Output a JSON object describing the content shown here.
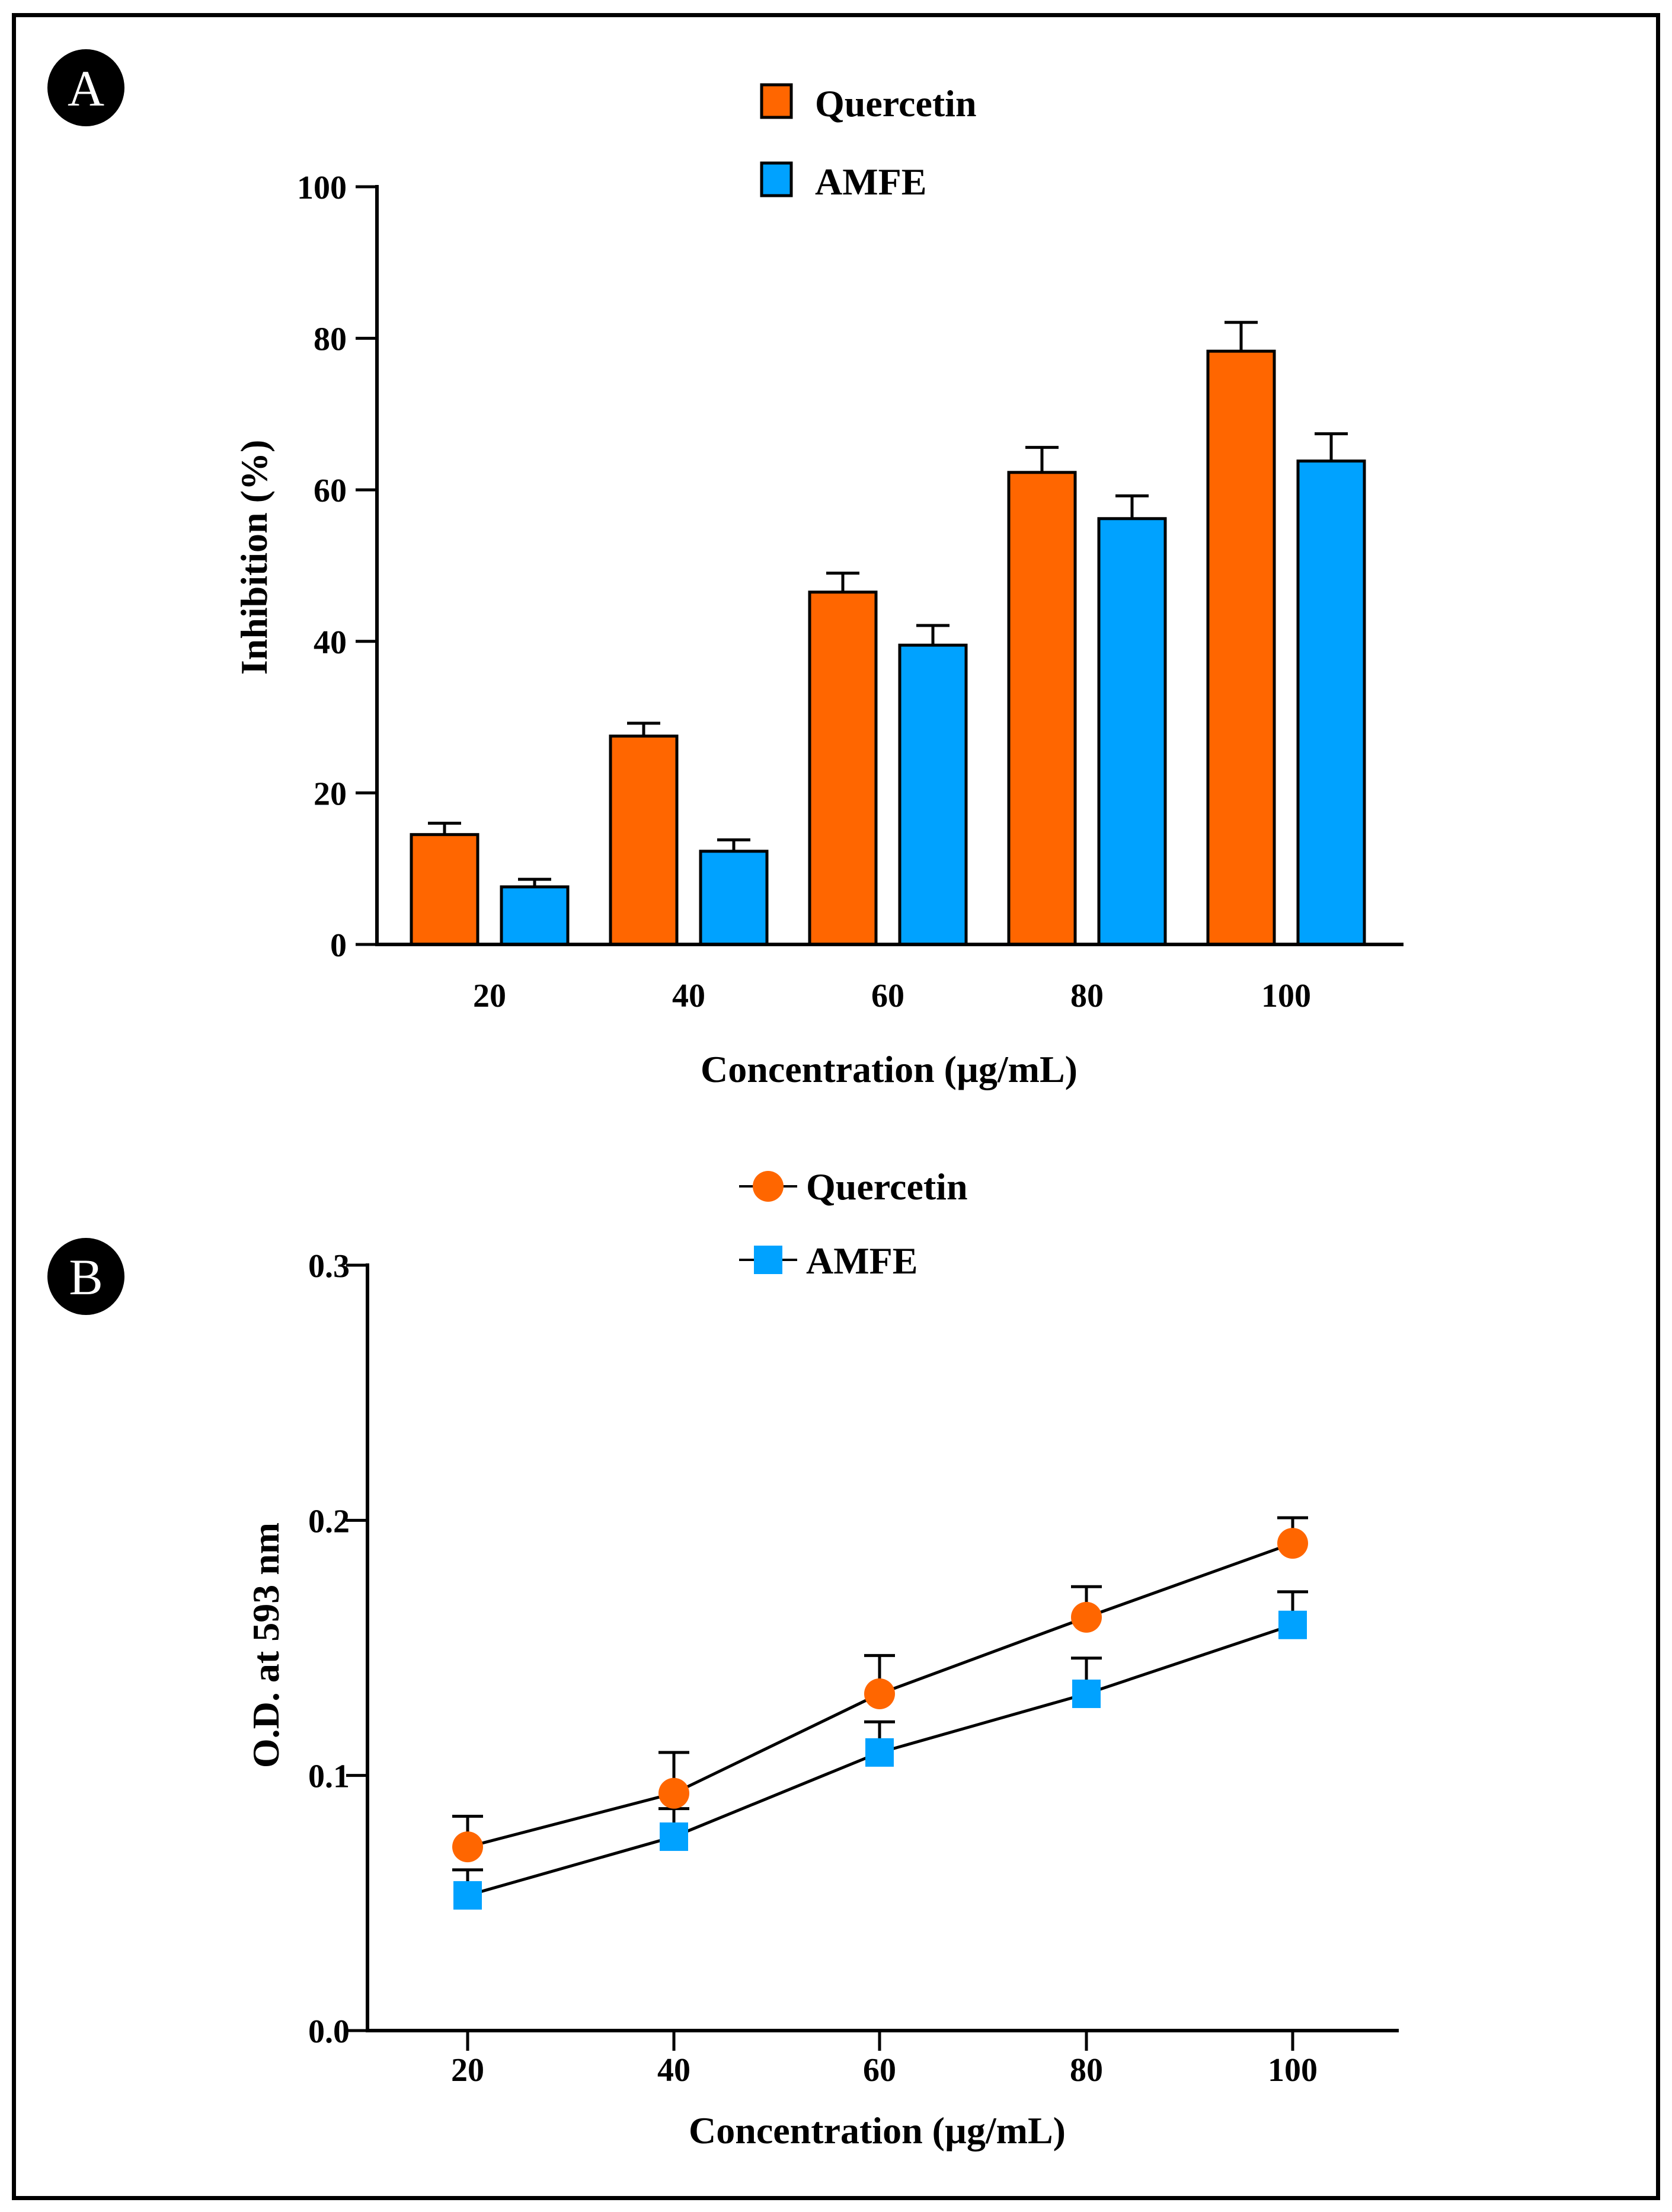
{
  "colors": {
    "quercetin": "#ff6600",
    "amfe": "#00a2ff",
    "axis": "#000000"
  },
  "chart_data": [
    {
      "type": "bar",
      "panel_label": "A",
      "xlabel": "Concentration (µg/mL)",
      "ylabel": "Inhibition (%)",
      "categories": [
        "20",
        "40",
        "60",
        "80",
        "100"
      ],
      "ylim": [
        0,
        100
      ],
      "yticks": [
        "0",
        "20",
        "40",
        "60",
        "80",
        "100"
      ],
      "legend_position": "top-center",
      "series": [
        {
          "name": "Quercetin",
          "values": [
            14.5,
            27.5,
            46.5,
            62.3,
            78.3
          ],
          "errors": [
            1.5,
            1.7,
            2.5,
            3.3,
            3.8
          ]
        },
        {
          "name": "AMFE",
          "values": [
            7.6,
            12.3,
            39.5,
            56.2,
            63.8
          ],
          "errors": [
            1.0,
            1.5,
            2.6,
            3.0,
            3.6
          ]
        }
      ]
    },
    {
      "type": "line",
      "panel_label": "B",
      "xlabel": "Concentration (µg/mL)",
      "ylabel": "O.D. at 593 nm",
      "x": [
        "20",
        "40",
        "60",
        "80",
        "100"
      ],
      "ylim": [
        0.0,
        0.3
      ],
      "yticks": [
        "0.0",
        "0.1",
        "0.2",
        "0.3"
      ],
      "legend_position": "top-center",
      "series": [
        {
          "name": "Quercetin",
          "marker": "circle",
          "values": [
            0.072,
            0.093,
            0.132,
            0.162,
            0.191
          ],
          "errors": [
            0.012,
            0.016,
            0.015,
            0.012,
            0.01
          ]
        },
        {
          "name": "AMFE",
          "marker": "square",
          "values": [
            0.053,
            0.076,
            0.109,
            0.132,
            0.159
          ],
          "errors": [
            0.01,
            0.011,
            0.012,
            0.014,
            0.013
          ]
        }
      ]
    }
  ]
}
